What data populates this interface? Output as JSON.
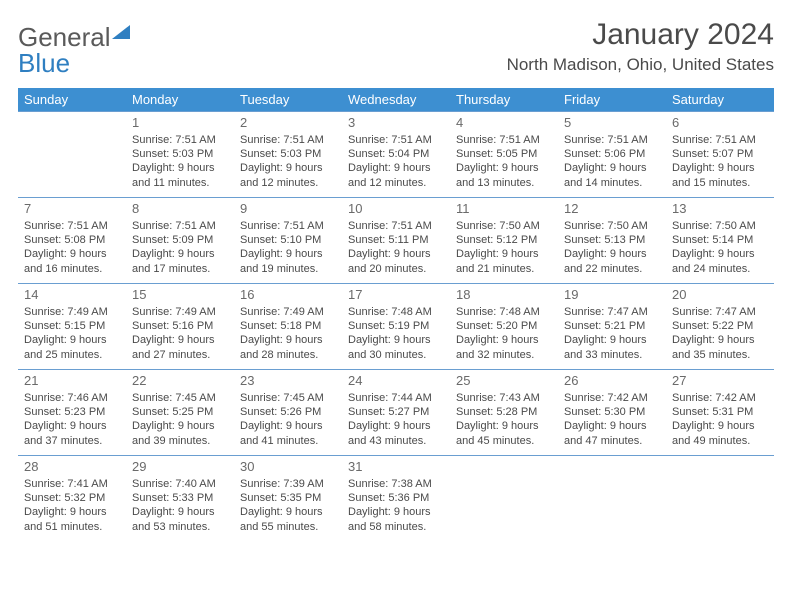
{
  "logo": {
    "part1": "General",
    "part2": "Blue"
  },
  "title": "January 2024",
  "location": "North Madison, Ohio, United States",
  "colors": {
    "header_bg": "#3d8fd1",
    "header_text": "#ffffff",
    "rule": "#6a9ed1",
    "body_text": "#4a4a4a",
    "logo_blue": "#2f7fc1"
  },
  "weekdays": [
    "Sunday",
    "Monday",
    "Tuesday",
    "Wednesday",
    "Thursday",
    "Friday",
    "Saturday"
  ],
  "weeks": [
    [
      null,
      {
        "n": "1",
        "sr": "Sunrise: 7:51 AM",
        "ss": "Sunset: 5:03 PM",
        "d1": "Daylight: 9 hours",
        "d2": "and 11 minutes."
      },
      {
        "n": "2",
        "sr": "Sunrise: 7:51 AM",
        "ss": "Sunset: 5:03 PM",
        "d1": "Daylight: 9 hours",
        "d2": "and 12 minutes."
      },
      {
        "n": "3",
        "sr": "Sunrise: 7:51 AM",
        "ss": "Sunset: 5:04 PM",
        "d1": "Daylight: 9 hours",
        "d2": "and 12 minutes."
      },
      {
        "n": "4",
        "sr": "Sunrise: 7:51 AM",
        "ss": "Sunset: 5:05 PM",
        "d1": "Daylight: 9 hours",
        "d2": "and 13 minutes."
      },
      {
        "n": "5",
        "sr": "Sunrise: 7:51 AM",
        "ss": "Sunset: 5:06 PM",
        "d1": "Daylight: 9 hours",
        "d2": "and 14 minutes."
      },
      {
        "n": "6",
        "sr": "Sunrise: 7:51 AM",
        "ss": "Sunset: 5:07 PM",
        "d1": "Daylight: 9 hours",
        "d2": "and 15 minutes."
      }
    ],
    [
      {
        "n": "7",
        "sr": "Sunrise: 7:51 AM",
        "ss": "Sunset: 5:08 PM",
        "d1": "Daylight: 9 hours",
        "d2": "and 16 minutes."
      },
      {
        "n": "8",
        "sr": "Sunrise: 7:51 AM",
        "ss": "Sunset: 5:09 PM",
        "d1": "Daylight: 9 hours",
        "d2": "and 17 minutes."
      },
      {
        "n": "9",
        "sr": "Sunrise: 7:51 AM",
        "ss": "Sunset: 5:10 PM",
        "d1": "Daylight: 9 hours",
        "d2": "and 19 minutes."
      },
      {
        "n": "10",
        "sr": "Sunrise: 7:51 AM",
        "ss": "Sunset: 5:11 PM",
        "d1": "Daylight: 9 hours",
        "d2": "and 20 minutes."
      },
      {
        "n": "11",
        "sr": "Sunrise: 7:50 AM",
        "ss": "Sunset: 5:12 PM",
        "d1": "Daylight: 9 hours",
        "d2": "and 21 minutes."
      },
      {
        "n": "12",
        "sr": "Sunrise: 7:50 AM",
        "ss": "Sunset: 5:13 PM",
        "d1": "Daylight: 9 hours",
        "d2": "and 22 minutes."
      },
      {
        "n": "13",
        "sr": "Sunrise: 7:50 AM",
        "ss": "Sunset: 5:14 PM",
        "d1": "Daylight: 9 hours",
        "d2": "and 24 minutes."
      }
    ],
    [
      {
        "n": "14",
        "sr": "Sunrise: 7:49 AM",
        "ss": "Sunset: 5:15 PM",
        "d1": "Daylight: 9 hours",
        "d2": "and 25 minutes."
      },
      {
        "n": "15",
        "sr": "Sunrise: 7:49 AM",
        "ss": "Sunset: 5:16 PM",
        "d1": "Daylight: 9 hours",
        "d2": "and 27 minutes."
      },
      {
        "n": "16",
        "sr": "Sunrise: 7:49 AM",
        "ss": "Sunset: 5:18 PM",
        "d1": "Daylight: 9 hours",
        "d2": "and 28 minutes."
      },
      {
        "n": "17",
        "sr": "Sunrise: 7:48 AM",
        "ss": "Sunset: 5:19 PM",
        "d1": "Daylight: 9 hours",
        "d2": "and 30 minutes."
      },
      {
        "n": "18",
        "sr": "Sunrise: 7:48 AM",
        "ss": "Sunset: 5:20 PM",
        "d1": "Daylight: 9 hours",
        "d2": "and 32 minutes."
      },
      {
        "n": "19",
        "sr": "Sunrise: 7:47 AM",
        "ss": "Sunset: 5:21 PM",
        "d1": "Daylight: 9 hours",
        "d2": "and 33 minutes."
      },
      {
        "n": "20",
        "sr": "Sunrise: 7:47 AM",
        "ss": "Sunset: 5:22 PM",
        "d1": "Daylight: 9 hours",
        "d2": "and 35 minutes."
      }
    ],
    [
      {
        "n": "21",
        "sr": "Sunrise: 7:46 AM",
        "ss": "Sunset: 5:23 PM",
        "d1": "Daylight: 9 hours",
        "d2": "and 37 minutes."
      },
      {
        "n": "22",
        "sr": "Sunrise: 7:45 AM",
        "ss": "Sunset: 5:25 PM",
        "d1": "Daylight: 9 hours",
        "d2": "and 39 minutes."
      },
      {
        "n": "23",
        "sr": "Sunrise: 7:45 AM",
        "ss": "Sunset: 5:26 PM",
        "d1": "Daylight: 9 hours",
        "d2": "and 41 minutes."
      },
      {
        "n": "24",
        "sr": "Sunrise: 7:44 AM",
        "ss": "Sunset: 5:27 PM",
        "d1": "Daylight: 9 hours",
        "d2": "and 43 minutes."
      },
      {
        "n": "25",
        "sr": "Sunrise: 7:43 AM",
        "ss": "Sunset: 5:28 PM",
        "d1": "Daylight: 9 hours",
        "d2": "and 45 minutes."
      },
      {
        "n": "26",
        "sr": "Sunrise: 7:42 AM",
        "ss": "Sunset: 5:30 PM",
        "d1": "Daylight: 9 hours",
        "d2": "and 47 minutes."
      },
      {
        "n": "27",
        "sr": "Sunrise: 7:42 AM",
        "ss": "Sunset: 5:31 PM",
        "d1": "Daylight: 9 hours",
        "d2": "and 49 minutes."
      }
    ],
    [
      {
        "n": "28",
        "sr": "Sunrise: 7:41 AM",
        "ss": "Sunset: 5:32 PM",
        "d1": "Daylight: 9 hours",
        "d2": "and 51 minutes."
      },
      {
        "n": "29",
        "sr": "Sunrise: 7:40 AM",
        "ss": "Sunset: 5:33 PM",
        "d1": "Daylight: 9 hours",
        "d2": "and 53 minutes."
      },
      {
        "n": "30",
        "sr": "Sunrise: 7:39 AM",
        "ss": "Sunset: 5:35 PM",
        "d1": "Daylight: 9 hours",
        "d2": "and 55 minutes."
      },
      {
        "n": "31",
        "sr": "Sunrise: 7:38 AM",
        "ss": "Sunset: 5:36 PM",
        "d1": "Daylight: 9 hours",
        "d2": "and 58 minutes."
      },
      null,
      null,
      null
    ]
  ]
}
